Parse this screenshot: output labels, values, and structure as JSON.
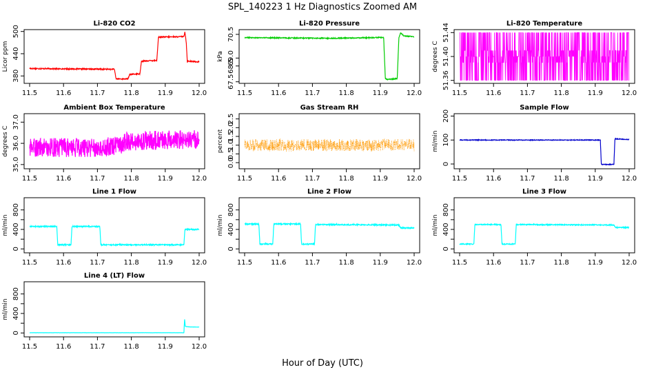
{
  "figure": {
    "title": "SPL_140223  1 Hz Diagnostics Zoomed AM",
    "xlabel": "Hour of Day (UTC)"
  },
  "chart_data": [
    {
      "id": "co2",
      "type": "line",
      "title": "Li-820 CO2",
      "ylabel": "Licor ppm",
      "color": "#ff0000",
      "xlim": [
        11.5,
        12.0
      ],
      "xticks": [
        11.5,
        11.6,
        11.7,
        11.8,
        11.9,
        12.0
      ],
      "xtick_labels": [
        "11.5",
        "11.6",
        "11.7",
        "11.8",
        "11.9",
        "12.0"
      ],
      "ylim": [
        360,
        505
      ],
      "yticks": [
        380,
        440,
        500
      ],
      "ytick_labels": [
        "380",
        "440",
        "500"
      ],
      "x": [
        11.5,
        11.75,
        11.755,
        11.79,
        11.795,
        11.825,
        11.83,
        11.875,
        11.88,
        11.955,
        11.958,
        11.962,
        11.965,
        12.0
      ],
      "y": [
        400,
        398,
        372,
        372,
        384,
        386,
        420,
        422,
        485,
        486,
        500,
        470,
        420,
        418
      ],
      "noise": 1.5
    },
    {
      "id": "pressure",
      "type": "line",
      "title": "Li-820 Pressure",
      "ylabel": "kPa",
      "color": "#00cc00",
      "xlim": [
        11.5,
        12.0
      ],
      "xticks": [
        11.5,
        11.6,
        11.7,
        11.8,
        11.9,
        12.0
      ],
      "xtick_labels": [
        "11.5",
        "11.6",
        "11.7",
        "11.8",
        "11.9",
        "12.0"
      ],
      "ylim": [
        67.4,
        70.8
      ],
      "yticks": [
        67.5,
        68.5,
        69.0,
        70.5
      ],
      "ytick_labels": [
        "67.5",
        "68.5",
        "69.0",
        "70.5"
      ],
      "x": [
        11.5,
        11.75,
        11.9,
        11.91,
        11.915,
        11.92,
        11.95,
        11.955,
        11.96,
        11.97,
        12.0
      ],
      "y": [
        70.3,
        70.25,
        70.3,
        70.3,
        67.7,
        67.65,
        67.7,
        70.3,
        70.6,
        70.4,
        70.35
      ],
      "noise": 0.03
    },
    {
      "id": "licor_temp",
      "type": "line",
      "title": "Li-820 Temperature",
      "ylabel": "degrees C",
      "color": "#ff00ff",
      "xlim": [
        11.5,
        12.0
      ],
      "xticks": [
        11.5,
        11.6,
        11.7,
        11.8,
        11.9,
        12.0
      ],
      "xtick_labels": [
        "11.5",
        "11.6",
        "11.7",
        "11.8",
        "11.9",
        "12.0"
      ],
      "ylim": [
        51.355,
        51.445
      ],
      "yticks": [
        51.36,
        51.4,
        51.44
      ],
      "ytick_labels": [
        "51.36",
        "51.40",
        "51.44"
      ],
      "x": [
        11.5,
        12.0
      ],
      "y": [
        51.398,
        51.398
      ],
      "levels": [
        51.36,
        51.39,
        51.4,
        51.41,
        51.44
      ]
    },
    {
      "id": "box_temp",
      "type": "line",
      "title": "Ambient Box Temperature",
      "ylabel": "degrees C",
      "color": "#ff00ff",
      "xlim": [
        11.5,
        12.0
      ],
      "xticks": [
        11.5,
        11.6,
        11.7,
        11.8,
        11.9,
        12.0
      ],
      "xtick_labels": [
        "11.5",
        "11.6",
        "11.7",
        "11.8",
        "11.9",
        "12.0"
      ],
      "ylim": [
        34.8,
        37.4
      ],
      "yticks": [
        35.0,
        36.0,
        37.0
      ],
      "ytick_labels": [
        "35.0",
        "36.0",
        "37.0"
      ],
      "x": [
        11.5,
        11.7,
        11.77,
        11.78,
        12.0
      ],
      "y": [
        35.8,
        35.8,
        35.9,
        36.1,
        36.2
      ],
      "noise": 0.45
    },
    {
      "id": "rh",
      "type": "scatter",
      "title": "Gas Stream RH",
      "ylabel": "percent",
      "color": "#ff9900",
      "xlim": [
        11.5,
        12.0
      ],
      "xticks": [
        11.5,
        11.6,
        11.7,
        11.8,
        11.9,
        12.0
      ],
      "xtick_labels": [
        "11.5",
        "11.6",
        "11.7",
        "11.8",
        "11.9",
        "12.0"
      ],
      "ylim": [
        -0.35,
        2.8
      ],
      "yticks": [
        0.0,
        0.5,
        1.0,
        1.5,
        2.0,
        2.5
      ],
      "ytick_labels": [
        "0.0",
        "0.5",
        "1.0",
        "1.5",
        "2.0",
        "2.5"
      ],
      "x": [
        11.5,
        12.0
      ],
      "y": [
        1.0,
        1.0
      ],
      "noise": 0.35
    },
    {
      "id": "sample_flow",
      "type": "line",
      "title": "Sample Flow",
      "ylabel": "ml/min",
      "color": "#0000cc",
      "xlim": [
        11.5,
        12.0
      ],
      "xticks": [
        11.5,
        11.6,
        11.7,
        11.8,
        11.9,
        12.0
      ],
      "xtick_labels": [
        "11.5",
        "11.6",
        "11.7",
        "11.8",
        "11.9",
        "12.0"
      ],
      "ylim": [
        -20,
        210
      ],
      "yticks": [
        0,
        100,
        200
      ],
      "ytick_labels": [
        "0",
        "100",
        "200"
      ],
      "x": [
        11.5,
        11.915,
        11.918,
        11.955,
        11.958,
        12.0
      ],
      "y": [
        100,
        100,
        -2,
        -2,
        105,
        102
      ],
      "noise": 1.5
    },
    {
      "id": "line1",
      "type": "line",
      "title": "Line 1 Flow",
      "ylabel": "ml/min",
      "color": "#00ffff",
      "xlim": [
        11.5,
        12.0
      ],
      "xticks": [
        11.5,
        11.6,
        11.7,
        11.8,
        11.9,
        12.0
      ],
      "xtick_labels": [
        "11.5",
        "11.6",
        "11.7",
        "11.8",
        "11.9",
        "12.0"
      ],
      "ylim": [
        -80,
        1050
      ],
      "yticks": [
        0,
        200,
        400,
        600,
        800
      ],
      "ytick_labels": [
        "0",
        "",
        "400",
        "",
        "800"
      ],
      "x": [
        11.5,
        11.58,
        11.583,
        11.622,
        11.625,
        11.707,
        11.71,
        11.955,
        11.958,
        12.0
      ],
      "y": [
        460,
        460,
        85,
        85,
        460,
        460,
        85,
        85,
        400,
        400
      ],
      "noise": 12
    },
    {
      "id": "line2",
      "type": "line",
      "title": "Line 2 Flow",
      "ylabel": "ml/min",
      "color": "#00ffff",
      "xlim": [
        11.5,
        12.0
      ],
      "xticks": [
        11.5,
        11.6,
        11.7,
        11.8,
        11.9,
        12.0
      ],
      "xtick_labels": [
        "11.5",
        "11.6",
        "11.7",
        "11.8",
        "11.9",
        "12.0"
      ],
      "ylim": [
        -80,
        1050
      ],
      "yticks": [
        0,
        200,
        400,
        600,
        800
      ],
      "ytick_labels": [
        "0",
        "",
        "400",
        "",
        "800"
      ],
      "x": [
        11.5,
        11.542,
        11.545,
        11.583,
        11.586,
        11.665,
        11.668,
        11.706,
        11.709,
        11.955,
        11.96,
        12.0
      ],
      "y": [
        510,
        510,
        100,
        100,
        510,
        510,
        100,
        100,
        500,
        490,
        430,
        430
      ],
      "noise": 12
    },
    {
      "id": "line3",
      "type": "line",
      "title": "Line 3 Flow",
      "ylabel": "ml/min",
      "color": "#00ffff",
      "xlim": [
        11.5,
        12.0
      ],
      "xticks": [
        11.5,
        11.6,
        11.7,
        11.8,
        11.9,
        12.0
      ],
      "xtick_labels": [
        "11.5",
        "11.6",
        "11.7",
        "11.8",
        "11.9",
        "12.0"
      ],
      "ylim": [
        -80,
        1050
      ],
      "yticks": [
        0,
        200,
        400,
        600,
        800
      ],
      "ytick_labels": [
        "0",
        "",
        "400",
        "",
        "800"
      ],
      "x": [
        11.5,
        11.542,
        11.545,
        11.622,
        11.625,
        11.664,
        11.667,
        11.955,
        11.96,
        12.0
      ],
      "y": [
        100,
        100,
        500,
        500,
        100,
        100,
        500,
        490,
        440,
        440
      ],
      "noise": 10
    },
    {
      "id": "line4",
      "type": "line",
      "title": "Line 4 (LT) Flow",
      "ylabel": "ml/min",
      "color": "#00ffff",
      "xlim": [
        11.5,
        12.0
      ],
      "xticks": [
        11.5,
        11.6,
        11.7,
        11.8,
        11.9,
        12.0
      ],
      "xtick_labels": [
        "11.5",
        "11.6",
        "11.7",
        "11.8",
        "11.9",
        "12.0"
      ],
      "ylim": [
        -80,
        1050
      ],
      "yticks": [
        0,
        200,
        400,
        600,
        800
      ],
      "ytick_labels": [
        "0",
        "",
        "400",
        "",
        "800"
      ],
      "x": [
        11.5,
        11.955,
        11.957,
        11.959,
        11.962,
        11.97,
        12.0
      ],
      "y": [
        5,
        5,
        290,
        140,
        130,
        125,
        120
      ],
      "noise": 2
    }
  ]
}
